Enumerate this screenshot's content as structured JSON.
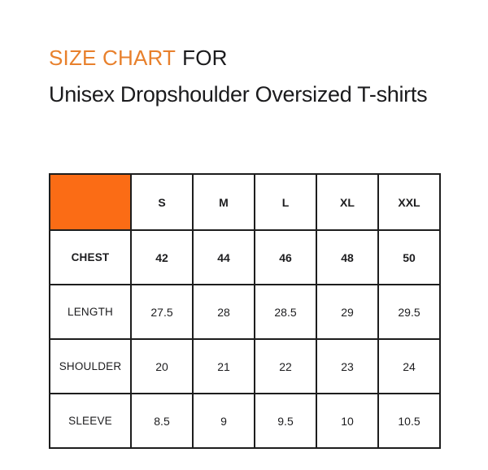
{
  "header": {
    "title_highlight": "SIZE CHART",
    "title_rest": "FOR",
    "subtitle": "Unisex Dropshoulder Oversized T-shirts"
  },
  "colors": {
    "title_accent": "#E8802C",
    "table_corner_fill": "#FB6C15",
    "table_border": "#1D1D1D",
    "text": "#1D1D1F",
    "page_background": "#FFFFFF"
  },
  "chart_data": {
    "type": "table",
    "title": "SIZE CHART FOR Unisex Dropshoulder Oversized T-shirts",
    "columns": [
      "",
      "S",
      "M",
      "L",
      "XL",
      "XXL"
    ],
    "rows": [
      {
        "label": "CHEST",
        "values": [
          "42",
          "44",
          "46",
          "48",
          "50"
        ]
      },
      {
        "label": "LENGTH",
        "values": [
          "27.5",
          "28",
          "28.5",
          "29",
          "29.5"
        ]
      },
      {
        "label": "SHOULDER",
        "values": [
          "20",
          "21",
          "22",
          "23",
          "24"
        ]
      },
      {
        "label": "SLEEVE",
        "values": [
          "8.5",
          "9",
          "9.5",
          "10",
          "10.5"
        ]
      }
    ],
    "layout": {
      "header_row_fill": "#FB6C15",
      "grid": true,
      "first_column_is_labels": true
    }
  }
}
